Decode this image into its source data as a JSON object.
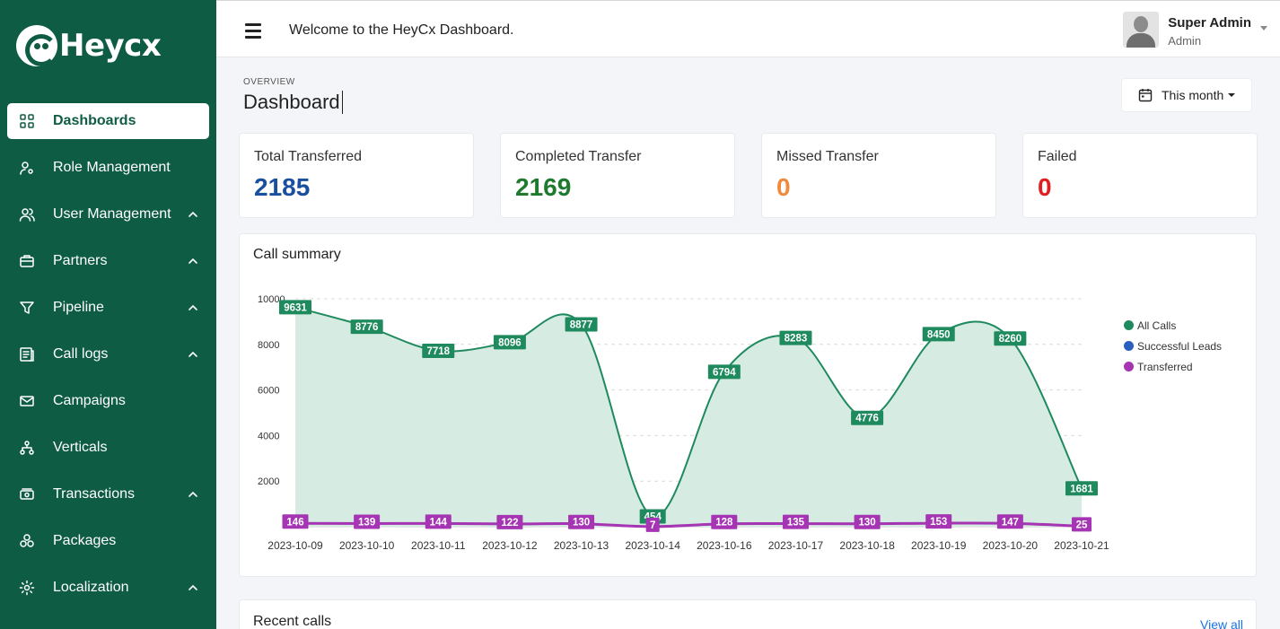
{
  "brand": {
    "name": "Heycx"
  },
  "sidebar": {
    "items": [
      {
        "label": "Dashboards",
        "icon": "grid-icon",
        "active": true,
        "expandable": false
      },
      {
        "label": "Role Management",
        "icon": "user-gear-icon",
        "active": false,
        "expandable": false
      },
      {
        "label": "User Management",
        "icon": "users-icon",
        "active": false,
        "expandable": true
      },
      {
        "label": "Partners",
        "icon": "briefcase-icon",
        "active": false,
        "expandable": true
      },
      {
        "label": "Pipeline",
        "icon": "filter-icon",
        "active": false,
        "expandable": true
      },
      {
        "label": "Call logs",
        "icon": "log-icon",
        "active": false,
        "expandable": true
      },
      {
        "label": "Campaigns",
        "icon": "mail-icon",
        "active": false,
        "expandable": false
      },
      {
        "label": "Verticals",
        "icon": "hierarchy-icon",
        "active": false,
        "expandable": false
      },
      {
        "label": "Transactions",
        "icon": "cash-icon",
        "active": false,
        "expandable": true
      },
      {
        "label": "Packages",
        "icon": "boxes-icon",
        "active": false,
        "expandable": false
      },
      {
        "label": "Localization",
        "icon": "settings-icon",
        "active": false,
        "expandable": true
      }
    ]
  },
  "header": {
    "welcome": "Welcome to the HeyCx Dashboard.",
    "user_name": "Super Admin",
    "user_role": "Admin"
  },
  "page": {
    "overline": "OVERVIEW",
    "title": "Dashboard",
    "period": "This month"
  },
  "stats": [
    {
      "label": "Total Transferred",
      "value": "2185",
      "color": "#1a4fa0"
    },
    {
      "label": "Completed Transfer",
      "value": "2169",
      "color": "#1e7a2e"
    },
    {
      "label": "Missed Transfer",
      "value": "0",
      "color": "#f08a3c"
    },
    {
      "label": "Failed",
      "value": "0",
      "color": "#e02020"
    }
  ],
  "chart_title": "Call summary",
  "chart_data": {
    "type": "area",
    "categories": [
      "2023-10-09",
      "2023-10-10",
      "2023-10-11",
      "2023-10-12",
      "2023-10-13",
      "2023-10-14",
      "2023-10-16",
      "2023-10-17",
      "2023-10-18",
      "2023-10-19",
      "2023-10-20",
      "2023-10-21"
    ],
    "y_ticks": [
      "10000",
      "8000",
      "6000",
      "4000",
      "2000"
    ],
    "ylim": [
      0,
      10000
    ],
    "grid": true,
    "legend": "right",
    "series": [
      {
        "name": "All Calls",
        "color": "#1f8a5e",
        "values": [
          9631,
          8776,
          7718,
          8096,
          8877,
          454,
          6794,
          8283,
          4776,
          8450,
          8260,
          1681
        ]
      },
      {
        "name": "Successful Leads",
        "color": "#2a5fbf",
        "values": [
          146,
          139,
          144,
          122,
          130,
          7,
          128,
          135,
          130,
          153,
          147,
          25
        ]
      },
      {
        "name": "Transferred",
        "color": "#a535b3",
        "values": [
          146,
          139,
          144,
          122,
          130,
          7,
          128,
          135,
          130,
          153,
          147,
          25
        ]
      }
    ]
  },
  "recent": {
    "title": "Recent calls",
    "view_all": "View all"
  }
}
